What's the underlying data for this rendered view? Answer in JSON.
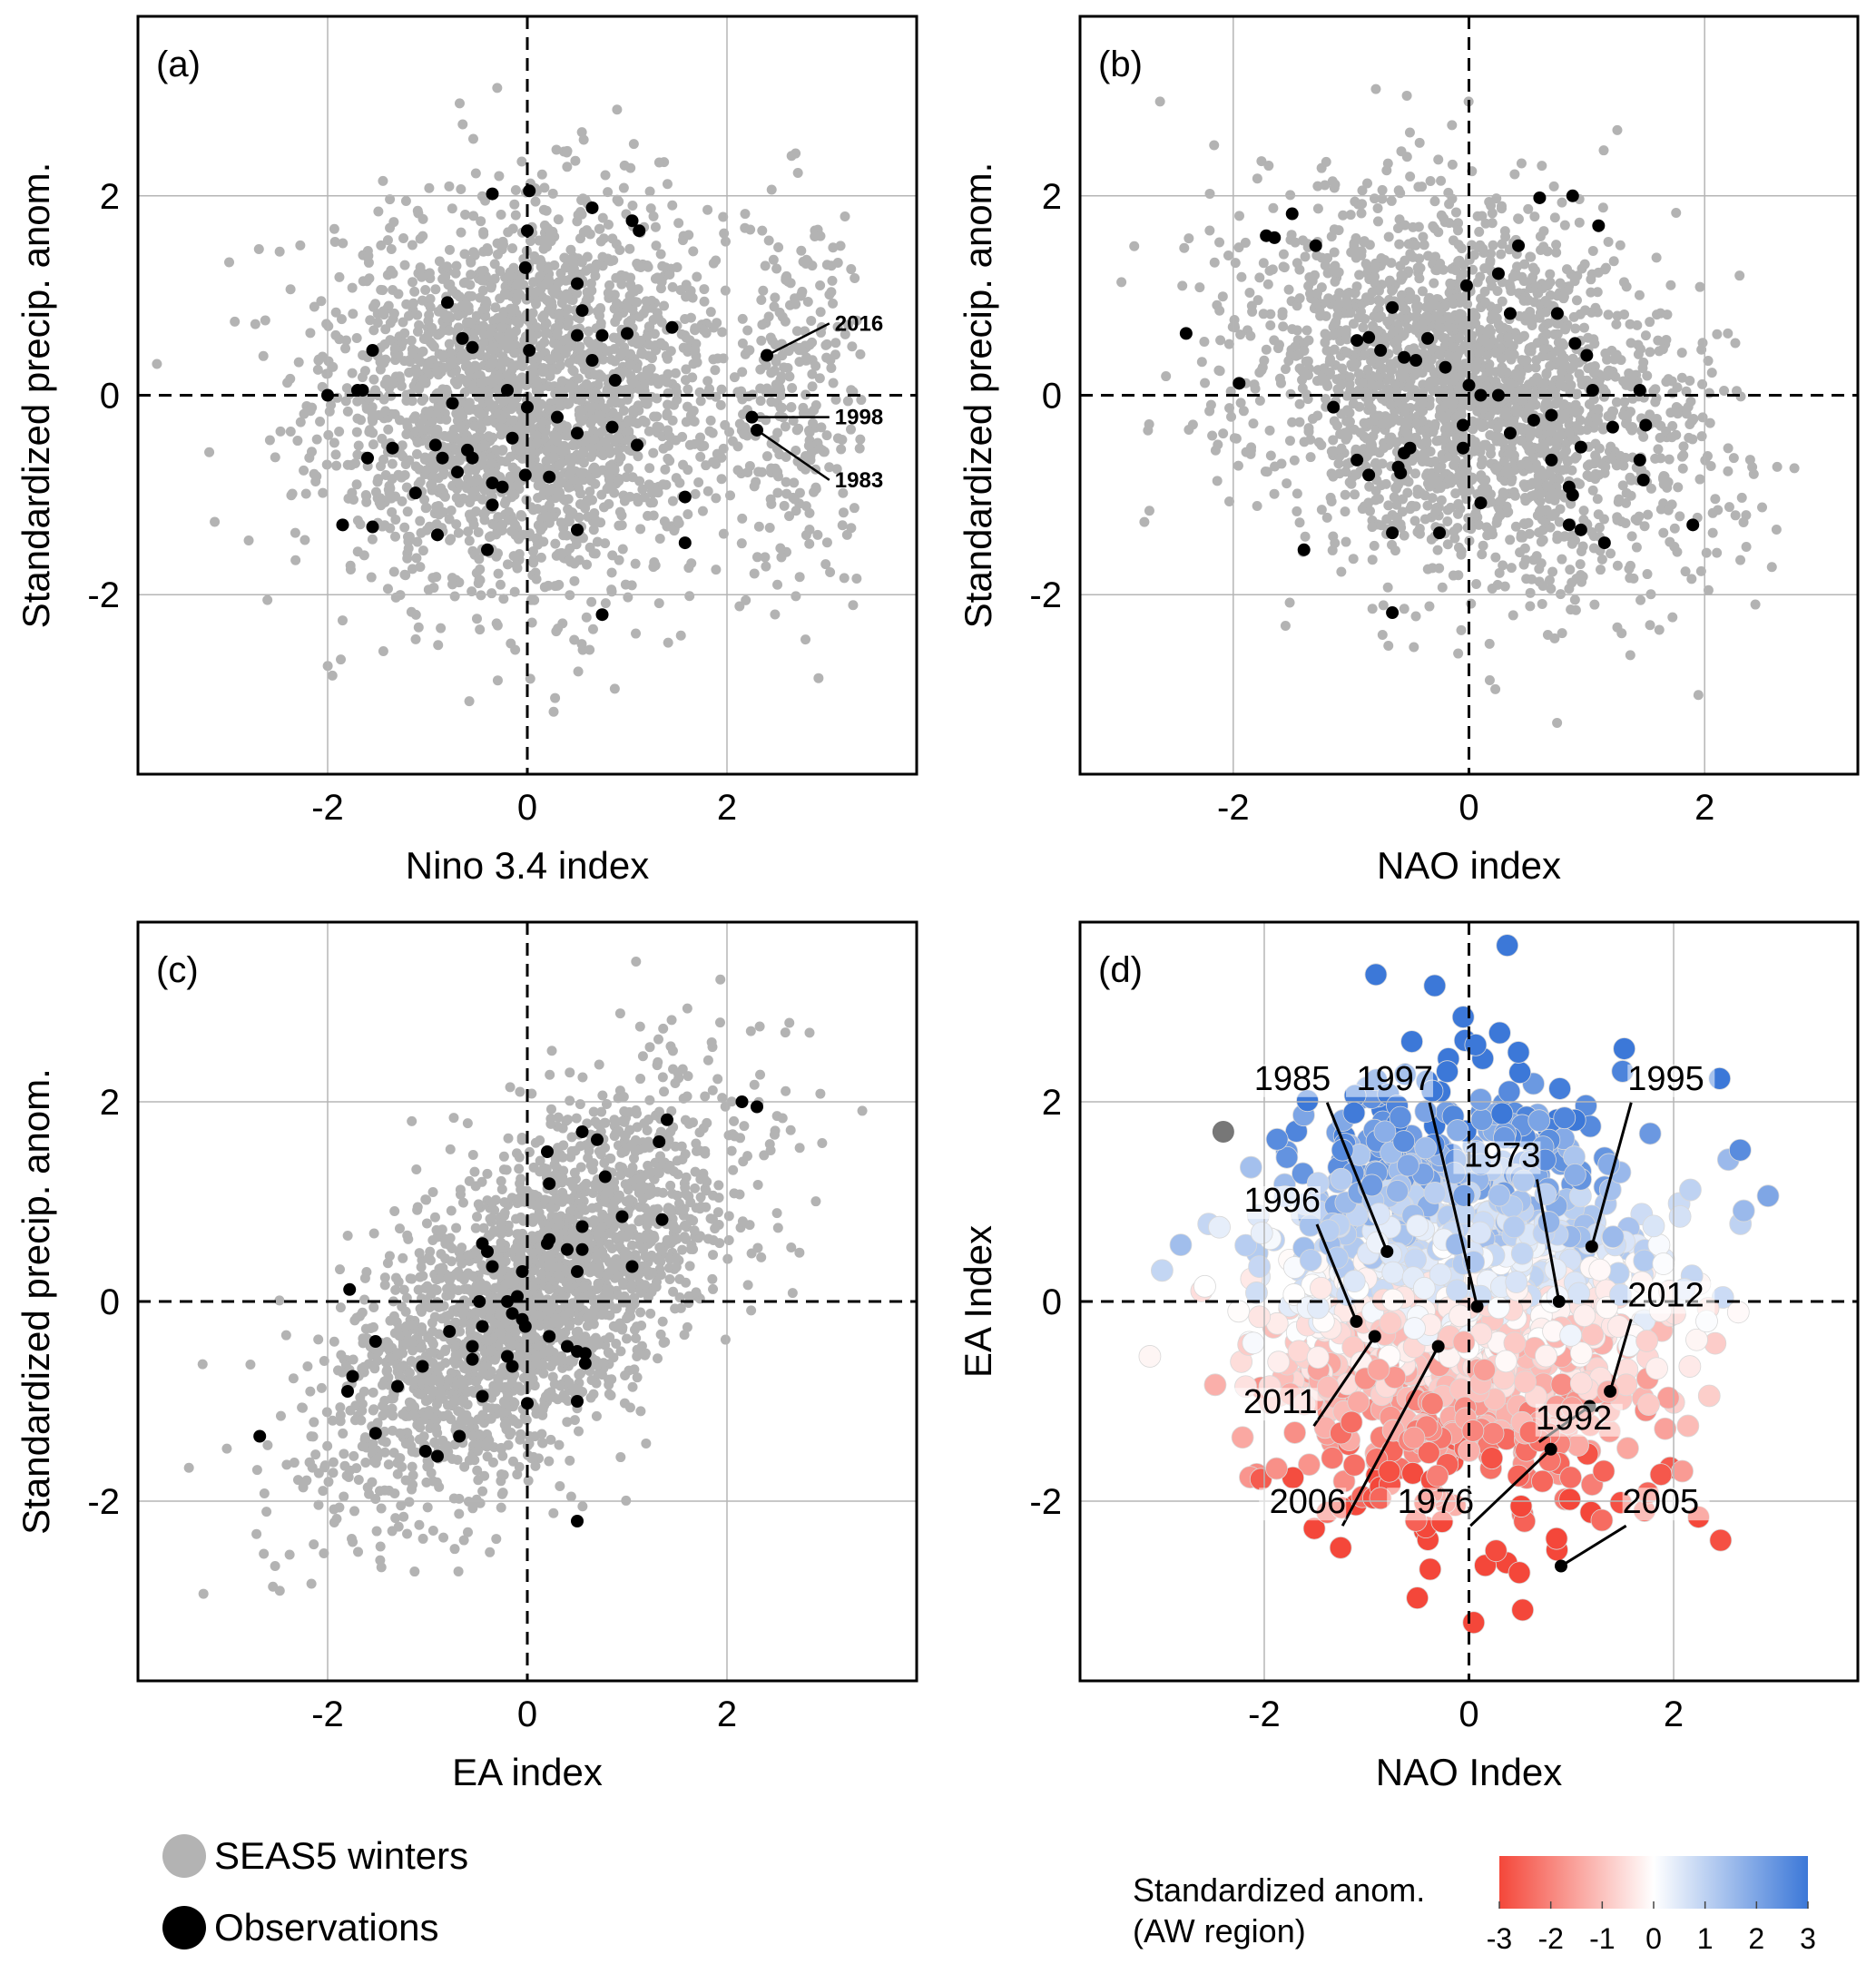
{
  "chart_data": [
    {
      "panel": "(a)",
      "type": "scatter",
      "xlabel": "Nino 3.4 index",
      "ylabel": "Standardized precip. anom.",
      "xlim": [
        -3.9,
        3.9
      ],
      "ylim": [
        -3.8,
        3.8
      ],
      "xticks": [
        -2,
        0,
        2
      ],
      "yticks": [
        -2,
        0,
        2
      ],
      "grid": true,
      "cloud": {
        "series": "SEAS5 winters",
        "color": "#b3b3b3",
        "count": 2400,
        "center": [
          0.0,
          0.0
        ],
        "sd": [
          1.0,
          0.95
        ],
        "correlation": 0.05
      },
      "observations": [
        [
          -2.0,
          0.0
        ],
        [
          -1.7,
          0.05
        ],
        [
          -1.65,
          0.05
        ],
        [
          -1.55,
          0.45
        ],
        [
          -1.85,
          -1.3
        ],
        [
          -1.55,
          -1.32
        ],
        [
          -1.6,
          -0.63
        ],
        [
          -1.35,
          -0.53
        ],
        [
          -1.12,
          -0.98
        ],
        [
          -0.92,
          -0.5
        ],
        [
          -0.85,
          -0.63
        ],
        [
          -0.9,
          -1.4
        ],
        [
          -0.6,
          -0.55
        ],
        [
          -0.55,
          -0.63
        ],
        [
          -0.7,
          -0.77
        ],
        [
          -0.35,
          -0.88
        ],
        [
          -0.35,
          -1.1
        ],
        [
          -0.4,
          -1.55
        ],
        [
          -0.25,
          -0.92
        ],
        [
          -0.15,
          -0.43
        ],
        [
          -0.02,
          -0.8
        ],
        [
          -0.75,
          -0.08
        ],
        [
          -0.8,
          0.93
        ],
        [
          -0.65,
          0.57
        ],
        [
          -0.55,
          0.48
        ],
        [
          -0.2,
          0.05
        ],
        [
          -0.35,
          2.02
        ],
        [
          0.02,
          2.05
        ],
        [
          0.0,
          1.65
        ],
        [
          -0.02,
          1.28
        ],
        [
          0.02,
          0.45
        ],
        [
          0.0,
          -0.12
        ],
        [
          0.22,
          -0.82
        ],
        [
          0.3,
          -0.22
        ],
        [
          0.5,
          1.12
        ],
        [
          0.5,
          0.6
        ],
        [
          0.65,
          0.35
        ],
        [
          0.55,
          0.85
        ],
        [
          0.65,
          1.88
        ],
        [
          0.75,
          0.6
        ],
        [
          0.88,
          0.15
        ],
        [
          0.85,
          -0.32
        ],
        [
          0.5,
          -0.38
        ],
        [
          0.5,
          -1.35
        ],
        [
          0.75,
          -2.2
        ],
        [
          1.0,
          0.62
        ],
        [
          1.05,
          1.75
        ],
        [
          1.12,
          1.65
        ],
        [
          1.1,
          -0.5
        ],
        [
          1.45,
          0.68
        ],
        [
          1.58,
          -1.02
        ],
        [
          1.58,
          -1.48
        ]
      ],
      "labeled_points": [
        {
          "label": "2016",
          "x": 2.4,
          "y": 0.4,
          "lx": 3.08,
          "ly": 0.72
        },
        {
          "label": "1998",
          "x": 2.25,
          "y": -0.22,
          "lx": 3.08,
          "ly": -0.22
        },
        {
          "label": "1983",
          "x": 2.3,
          "y": -0.35,
          "lx": 3.08,
          "ly": -0.85
        }
      ]
    },
    {
      "panel": "(b)",
      "type": "scatter",
      "xlabel": "NAO index",
      "ylabel": "Standardized precip. anom.",
      "xlim": [
        -3.3,
        3.3
      ],
      "ylim": [
        -3.8,
        3.8
      ],
      "xticks": [
        -2,
        0,
        2
      ],
      "yticks": [
        -2,
        0,
        2
      ],
      "grid": true,
      "cloud": {
        "series": "SEAS5 winters",
        "color": "#b3b3b3",
        "count": 2400,
        "center": [
          0.0,
          0.0
        ],
        "sd": [
          0.95,
          0.95
        ],
        "correlation": -0.25
      },
      "observations": [
        [
          -2.4,
          0.62
        ],
        [
          -1.72,
          1.6
        ],
        [
          -1.65,
          1.58
        ],
        [
          -1.5,
          1.82
        ],
        [
          -1.3,
          1.5
        ],
        [
          -1.95,
          0.12
        ],
        [
          -1.15,
          -0.12
        ],
        [
          -0.95,
          0.55
        ],
        [
          -0.85,
          0.58
        ],
        [
          -0.75,
          0.45
        ],
        [
          -0.55,
          0.38
        ],
        [
          -0.45,
          0.35
        ],
        [
          -0.35,
          0.57
        ],
        [
          -0.65,
          0.88
        ],
        [
          -0.02,
          1.1
        ],
        [
          -0.2,
          0.28
        ],
        [
          0.35,
          0.82
        ],
        [
          0.42,
          1.5
        ],
        [
          0.25,
          1.22
        ],
        [
          0.6,
          1.98
        ],
        [
          0.88,
          2.0
        ],
        [
          1.1,
          1.7
        ],
        [
          0.75,
          0.82
        ],
        [
          0.9,
          0.52
        ],
        [
          1.0,
          0.4
        ],
        [
          0.95,
          -0.52
        ],
        [
          1.05,
          0.05
        ],
        [
          1.22,
          -0.32
        ],
        [
          0.7,
          -0.2
        ],
        [
          0.55,
          -0.25
        ],
        [
          0.25,
          0.0
        ],
        [
          0.1,
          0.0
        ],
        [
          0.0,
          0.1
        ],
        [
          -0.05,
          -0.53
        ],
        [
          -0.05,
          -0.3
        ],
        [
          -0.5,
          -0.53
        ],
        [
          -0.55,
          -0.58
        ],
        [
          -0.6,
          -0.72
        ],
        [
          -0.58,
          -0.78
        ],
        [
          -0.85,
          -0.8
        ],
        [
          -0.95,
          -0.65
        ],
        [
          -0.65,
          -1.38
        ],
        [
          -0.25,
          -1.38
        ],
        [
          0.1,
          -1.08
        ],
        [
          0.35,
          -0.38
        ],
        [
          0.7,
          -0.65
        ],
        [
          0.85,
          -0.92
        ],
        [
          0.88,
          -1.0
        ],
        [
          0.85,
          -1.3
        ],
        [
          0.95,
          -1.35
        ],
        [
          1.15,
          -1.48
        ],
        [
          1.45,
          -0.65
        ],
        [
          1.48,
          -0.85
        ],
        [
          1.9,
          -1.3
        ],
        [
          1.45,
          0.05
        ],
        [
          1.5,
          -0.3
        ],
        [
          -1.4,
          -1.55
        ],
        [
          -0.65,
          -2.18
        ]
      ]
    },
    {
      "panel": "(c)",
      "type": "scatter",
      "xlabel": "EA index",
      "ylabel": "Standardized precip. anom.",
      "xlim": [
        -3.9,
        3.9
      ],
      "ylim": [
        -3.8,
        3.8
      ],
      "xticks": [
        -2,
        0,
        2
      ],
      "yticks": [
        -2,
        0,
        2
      ],
      "grid": true,
      "cloud": {
        "series": "SEAS5 winters",
        "color": "#b3b3b3",
        "count": 2400,
        "center": [
          0.0,
          0.0
        ],
        "sd": [
          1.0,
          1.0
        ],
        "correlation": 0.62
      },
      "observations": [
        [
          -2.68,
          -1.35
        ],
        [
          -1.8,
          -0.9
        ],
        [
          -1.75,
          -0.75
        ],
        [
          -1.78,
          0.12
        ],
        [
          -1.52,
          -0.4
        ],
        [
          -1.52,
          -1.32
        ],
        [
          -1.3,
          -0.85
        ],
        [
          -1.05,
          -0.65
        ],
        [
          -1.02,
          -1.5
        ],
        [
          -0.9,
          -1.55
        ],
        [
          -0.78,
          -0.3
        ],
        [
          -0.55,
          -0.45
        ],
        [
          -0.55,
          -0.58
        ],
        [
          -0.45,
          -0.25
        ],
        [
          -0.68,
          -1.35
        ],
        [
          -0.35,
          0.35
        ],
        [
          -0.48,
          0.0
        ],
        [
          -0.45,
          -0.95
        ],
        [
          -0.2,
          -0.55
        ],
        [
          -0.15,
          -0.12
        ],
        [
          -0.2,
          0.0
        ],
        [
          -0.1,
          0.05
        ],
        [
          -0.05,
          -0.18
        ],
        [
          -0.02,
          -0.25
        ],
        [
          0.0,
          -1.02
        ],
        [
          -0.15,
          -0.65
        ],
        [
          -0.05,
          0.3
        ],
        [
          -0.45,
          0.58
        ],
        [
          -0.4,
          0.5
        ],
        [
          0.2,
          0.58
        ],
        [
          0.2,
          1.5
        ],
        [
          0.22,
          1.18
        ],
        [
          0.22,
          0.62
        ],
        [
          0.4,
          0.52
        ],
        [
          0.55,
          0.75
        ],
        [
          0.55,
          0.52
        ],
        [
          0.5,
          0.3
        ],
        [
          0.22,
          -0.35
        ],
        [
          0.4,
          -0.45
        ],
        [
          0.5,
          -0.5
        ],
        [
          0.58,
          -0.52
        ],
        [
          0.58,
          -0.62
        ],
        [
          0.5,
          -1.0
        ],
        [
          0.55,
          1.7
        ],
        [
          0.7,
          1.62
        ],
        [
          0.78,
          1.25
        ],
        [
          0.95,
          0.85
        ],
        [
          1.05,
          0.35
        ],
        [
          1.35,
          0.82
        ],
        [
          1.32,
          1.6
        ],
        [
          1.4,
          1.82
        ],
        [
          2.15,
          2.0
        ],
        [
          2.3,
          1.95
        ],
        [
          0.5,
          -2.2
        ]
      ]
    },
    {
      "panel": "(d)",
      "type": "scatter",
      "xlabel": "NAO Index",
      "ylabel": "EA Index",
      "xlim": [
        -3.8,
        3.8
      ],
      "ylim": [
        -3.8,
        3.8
      ],
      "xticks": [
        -2,
        0,
        2
      ],
      "yticks": [
        -2,
        0,
        2
      ],
      "grid": true,
      "cloud": {
        "series": "SEAS5 winters",
        "count": 1500,
        "center": [
          0.0,
          0.0
        ],
        "sd": [
          1.0,
          1.0
        ],
        "color_value": "standardized anomaly (AW region), blue where EA index high, red where EA index low"
      },
      "observations": [
        {
          "label": "1985",
          "x": -0.8,
          "y": 0.5,
          "lx": -1.35,
          "ly": 2.12,
          "anchor": "right"
        },
        {
          "label": "1997",
          "x": 0.08,
          "y": -0.05,
          "lx": -0.35,
          "ly": 2.12,
          "anchor": "right"
        },
        {
          "label": "1995",
          "x": 1.2,
          "y": 0.55,
          "lx": 1.55,
          "ly": 2.12,
          "anchor": "left"
        },
        {
          "label": "1973",
          "x": 0.88,
          "y": 0.0,
          "lx": 0.7,
          "ly": 1.35,
          "anchor": "right"
        },
        {
          "label": "1996",
          "x": -1.1,
          "y": -0.2,
          "lx": -1.45,
          "ly": 0.9,
          "anchor": "right"
        },
        {
          "label": "2012",
          "x": 1.38,
          "y": -0.9,
          "lx": 1.55,
          "ly": -0.05,
          "anchor": "left"
        },
        {
          "label": "2011",
          "x": -0.92,
          "y": -0.35,
          "lx": -1.48,
          "ly": -1.12,
          "anchor": "right"
        },
        {
          "label": "1992",
          "x": 1.18,
          "y": -1.05,
          "lx": 0.65,
          "ly": -1.28,
          "anchor": "left"
        },
        {
          "label": "2006",
          "x": -0.3,
          "y": -0.45,
          "lx": -1.2,
          "ly": -2.12,
          "anchor": "right"
        },
        {
          "label": "1976",
          "x": 0.8,
          "y": -1.48,
          "lx": 0.05,
          "ly": -2.12,
          "anchor": "right"
        },
        {
          "label": "2005",
          "x": 0.9,
          "y": -2.65,
          "lx": 1.5,
          "ly": -2.12,
          "anchor": "left"
        }
      ],
      "colorbar": {
        "title": [
          "Standardized anom.",
          "(AW region)"
        ],
        "ticks": [
          "-3",
          "-2",
          "-1",
          "0",
          "1",
          "2",
          "3"
        ],
        "range": [
          -3,
          3
        ],
        "colors": {
          "low": "#f4473a",
          "mid": "#ffffff",
          "high": "#3c78d8"
        }
      }
    }
  ],
  "legend": {
    "items": [
      {
        "label": "SEAS5 winters",
        "color": "#b3b3b3"
      },
      {
        "label": "Observations",
        "color": "#000000"
      }
    ]
  },
  "colors": {
    "cloud": "#b3b3b3",
    "observation": "#000000",
    "grid": "#b5b5b5",
    "outlier": "#777777"
  }
}
